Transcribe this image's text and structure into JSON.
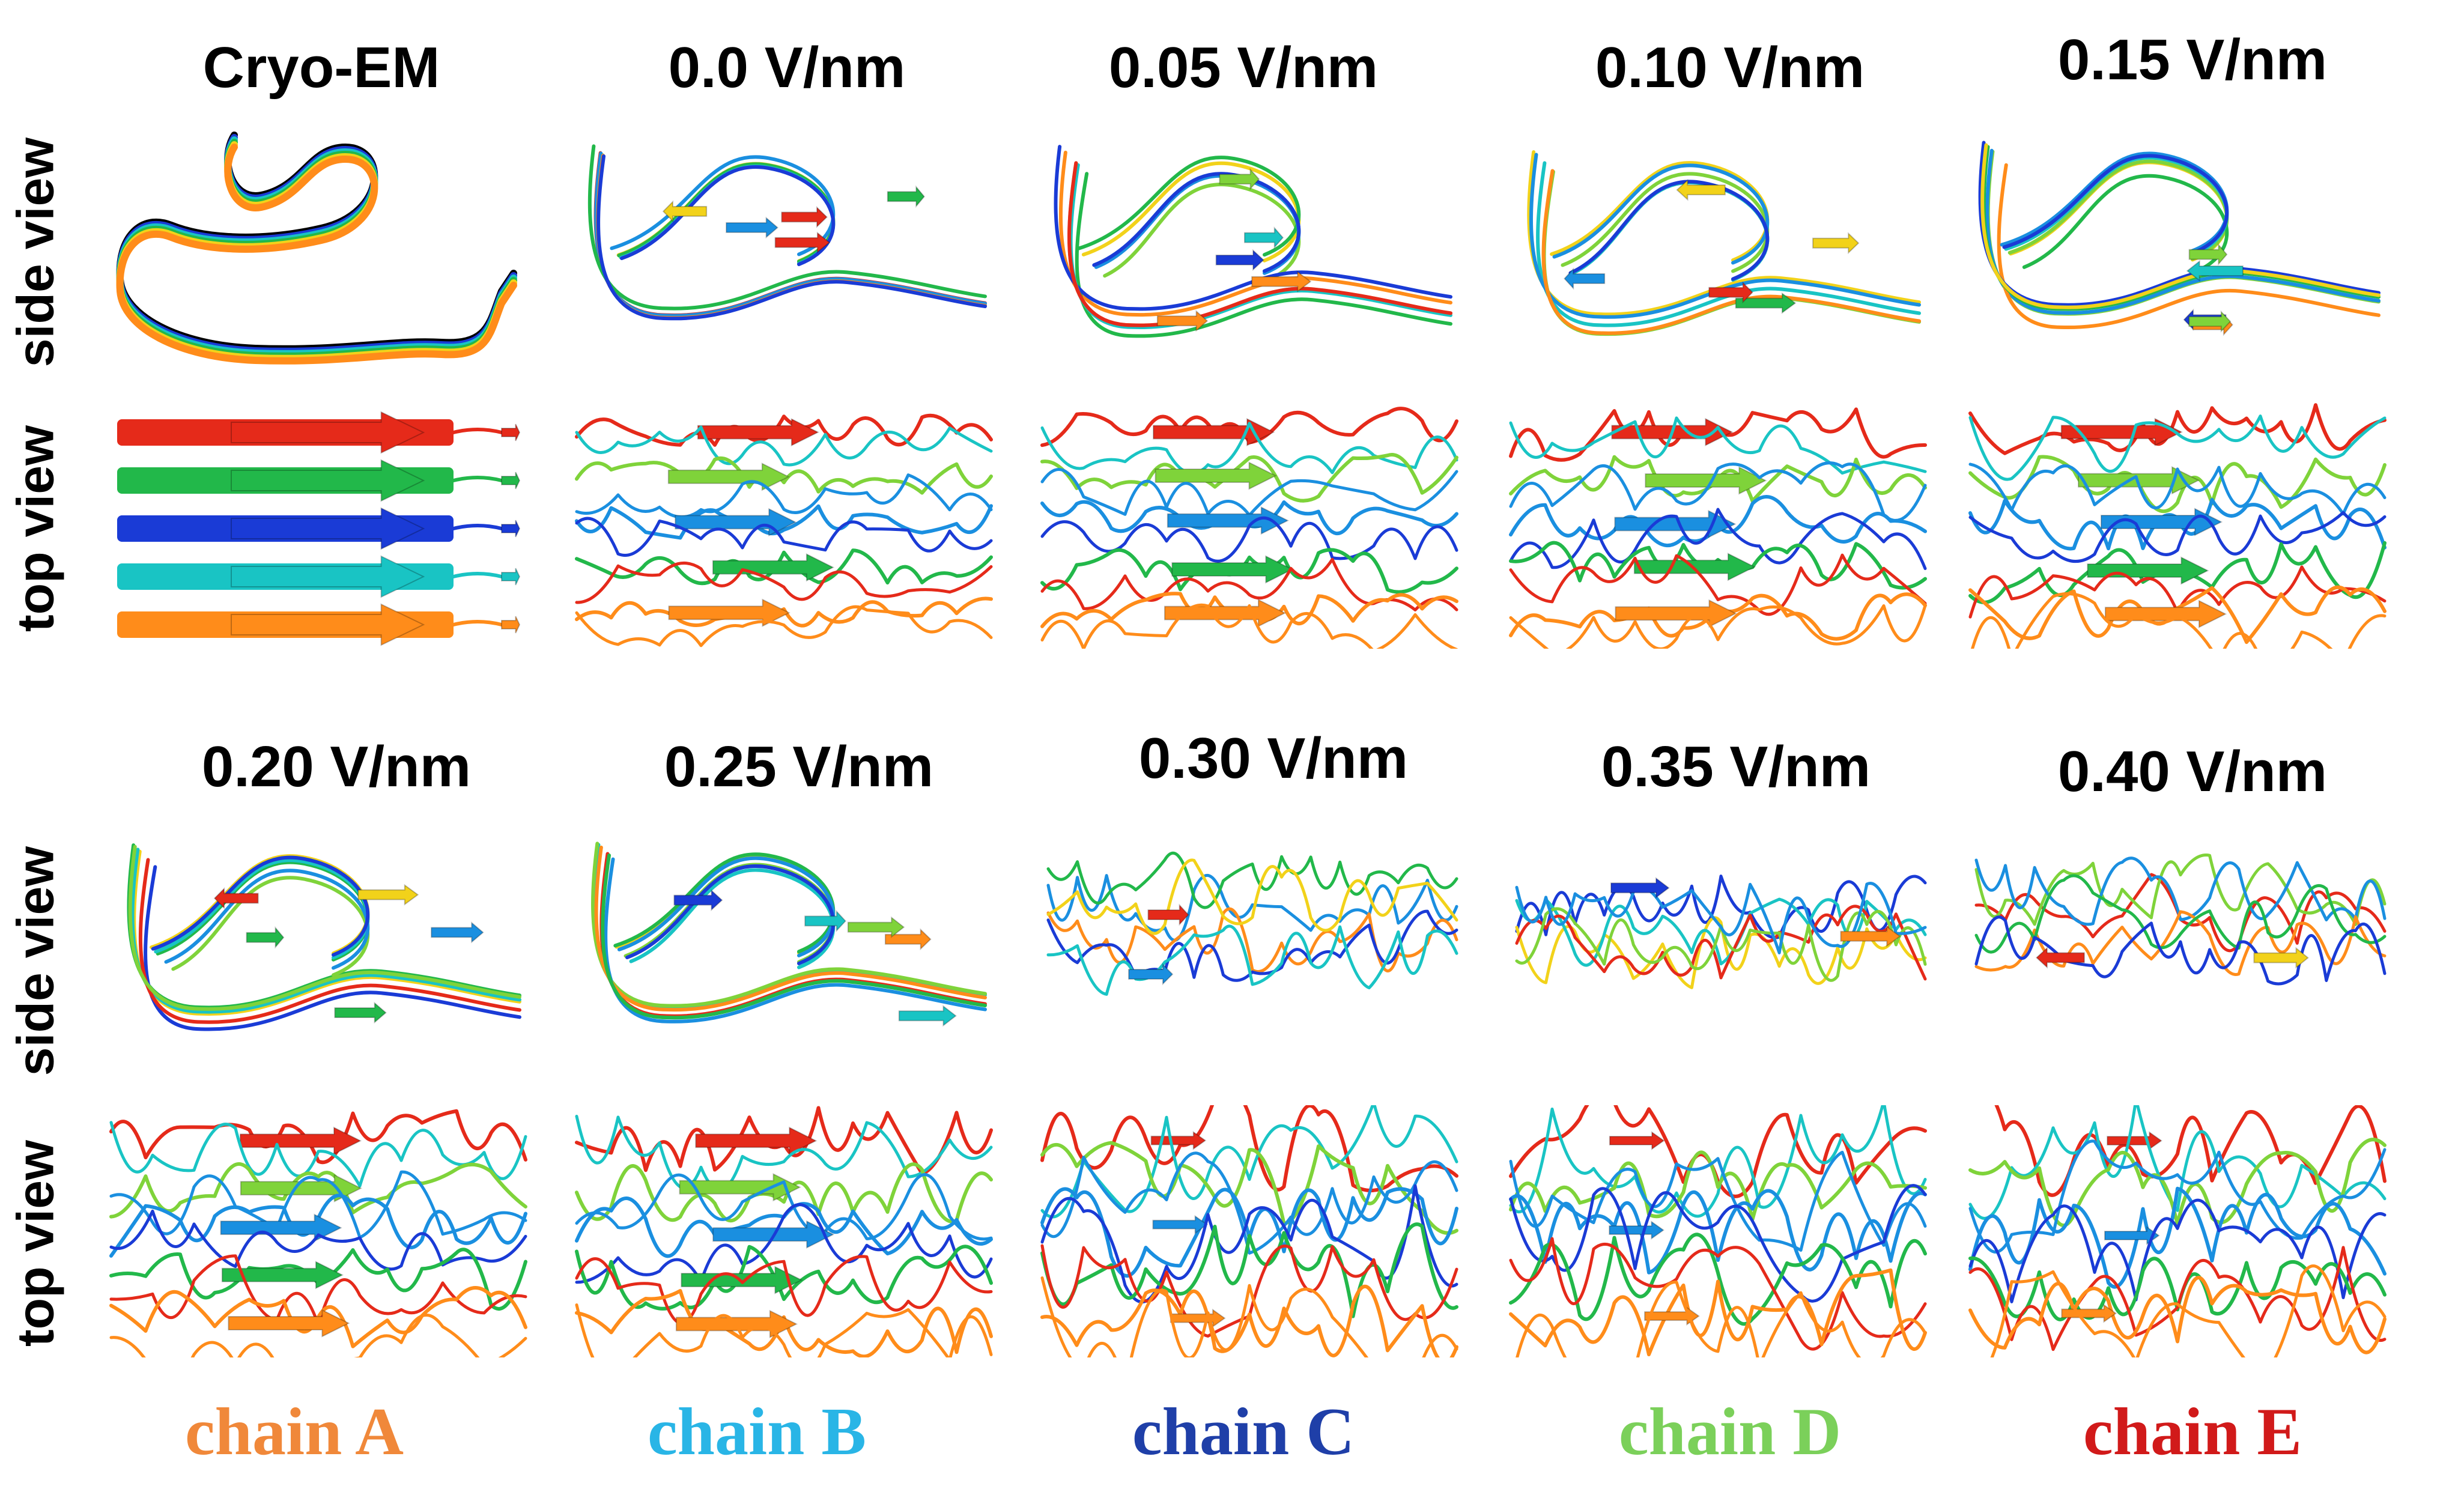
{
  "columns_top": [
    "Cryo-EM",
    "0.0 V/nm",
    "0.05 V/nm",
    "0.10 V/nm",
    "0.15 V/nm"
  ],
  "columns_bottom": [
    "0.20 V/nm",
    "0.25 V/nm",
    "0.30 V/nm",
    "0.35 V/nm",
    "0.40 V/nm"
  ],
  "row_labels": {
    "side": "side view",
    "top": "top view"
  },
  "legend": [
    {
      "label": "chain A",
      "color": "#f0883a"
    },
    {
      "label": "chain B",
      "color": "#29b5e6"
    },
    {
      "label": "chain C",
      "color": "#1f3fa8"
    },
    {
      "label": "chain D",
      "color": "#7bd05a"
    },
    {
      "label": "chain E",
      "color": "#d11a1a"
    }
  ],
  "strand_colors": [
    "#e52a1a",
    "#ff8c1a",
    "#f2d21a",
    "#7fd33a",
    "#22b84a",
    "#19c4c4",
    "#1a8fe0",
    "#1a3bd6"
  ]
}
